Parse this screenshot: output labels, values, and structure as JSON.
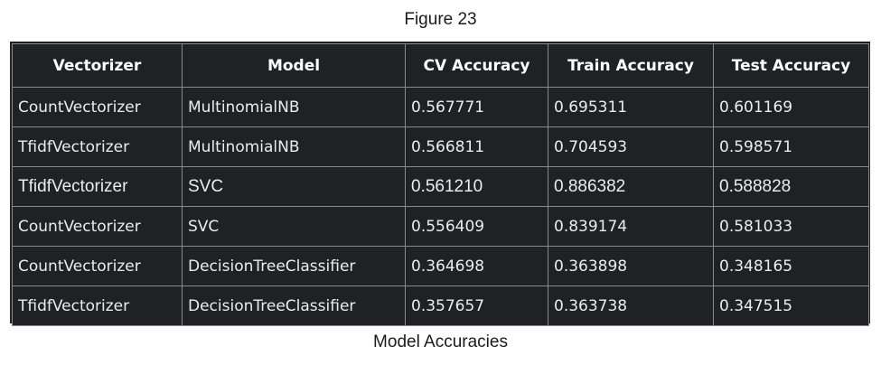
{
  "figure": {
    "title": "Figure 23",
    "caption": "Model Accuracies"
  },
  "table": {
    "headers": [
      "Vectorizer",
      "Model",
      "CV Accuracy",
      "Train Accuracy",
      "Test Accuracy"
    ],
    "rows": [
      [
        "CountVectorizer",
        "MultinomialNB",
        "0.567771",
        "0.695311",
        "0.601169"
      ],
      [
        "TfidfVectorizer",
        "MultinomialNB",
        "0.566811",
        "0.704593",
        "0.598571"
      ],
      [
        "TfidfVectorizer",
        "SVC",
        "0.561210",
        "0.886382",
        "0.588828"
      ],
      [
        "CountVectorizer",
        "SVC",
        "0.556409",
        "0.839174",
        "0.581033"
      ],
      [
        "CountVectorizer",
        "DecisionTreeClassifier",
        "0.364698",
        "0.363898",
        "0.348165"
      ],
      [
        "TfidfVectorizer",
        "DecisionTreeClassifier",
        "0.357657",
        "0.363738",
        "0.347515"
      ]
    ]
  },
  "colors": {
    "table_background": "#1f2125",
    "cell_border": "#8a8a8a",
    "text": "#ececec",
    "page_background": "#ffffff"
  }
}
